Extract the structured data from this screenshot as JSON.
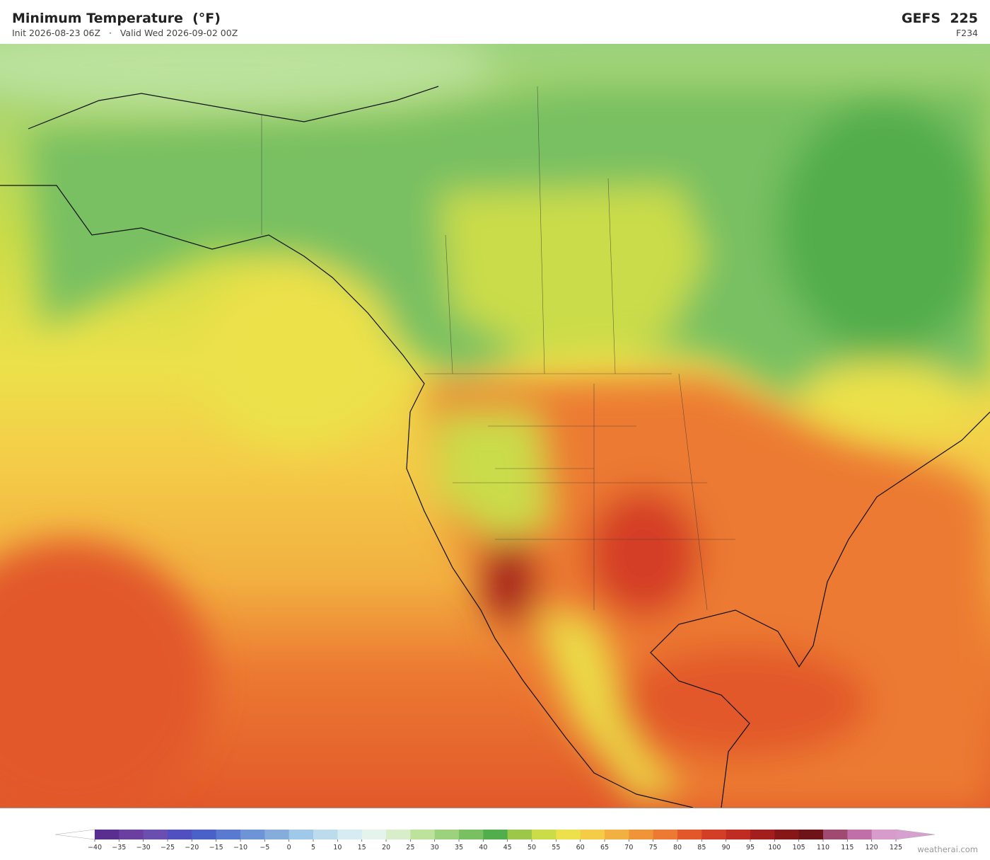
{
  "header": {
    "title": "Minimum Temperature  (°F)",
    "subtitle": "Init 2026-08-23 06Z   ·   Valid Wed 2026-09-02 00Z",
    "model": "GEFS  225",
    "step": "F234"
  },
  "colorbar": {
    "ticks": [
      {
        "value": -40,
        "label": "−40"
      },
      {
        "value": -35,
        "label": "−35"
      },
      {
        "value": -30,
        "label": "−30"
      },
      {
        "value": -25,
        "label": "−25"
      },
      {
        "value": -20,
        "label": "−20"
      },
      {
        "value": -15,
        "label": "−15"
      },
      {
        "value": -10,
        "label": "−10"
      },
      {
        "value": -5,
        "label": "−5"
      },
      0,
      5,
      10,
      15,
      20,
      25,
      30,
      35,
      40,
      45,
      50,
      55,
      60,
      65,
      70,
      75,
      80,
      85,
      90,
      95,
      100,
      105,
      110,
      115,
      120,
      125
    ],
    "colors": [
      "#5a2d91",
      "#6b3fa0",
      "#6a4fb0",
      "#5050c0",
      "#4a62c8",
      "#5a7ad0",
      "#6e94d8",
      "#86acdc",
      "#a0c8e8",
      "#bcdcee",
      "#d4ecf2",
      "#e4f4ec",
      "#d8eec8",
      "#bce29c",
      "#9cd27e",
      "#78c062",
      "#52ad4c",
      "#9cc84a",
      "#cadc48",
      "#ece14a",
      "#f4cc48",
      "#f2b040",
      "#f09438",
      "#ec7a32",
      "#e2582a",
      "#d43e26",
      "#c02c22",
      "#a41e1e",
      "#861618",
      "#6e1418",
      "#a04a72",
      "#c070a8",
      "#d89ccc"
    ],
    "under_color": "#ffffff",
    "over_color": "#d8a0d0"
  },
  "credit": "weatherai.com"
}
